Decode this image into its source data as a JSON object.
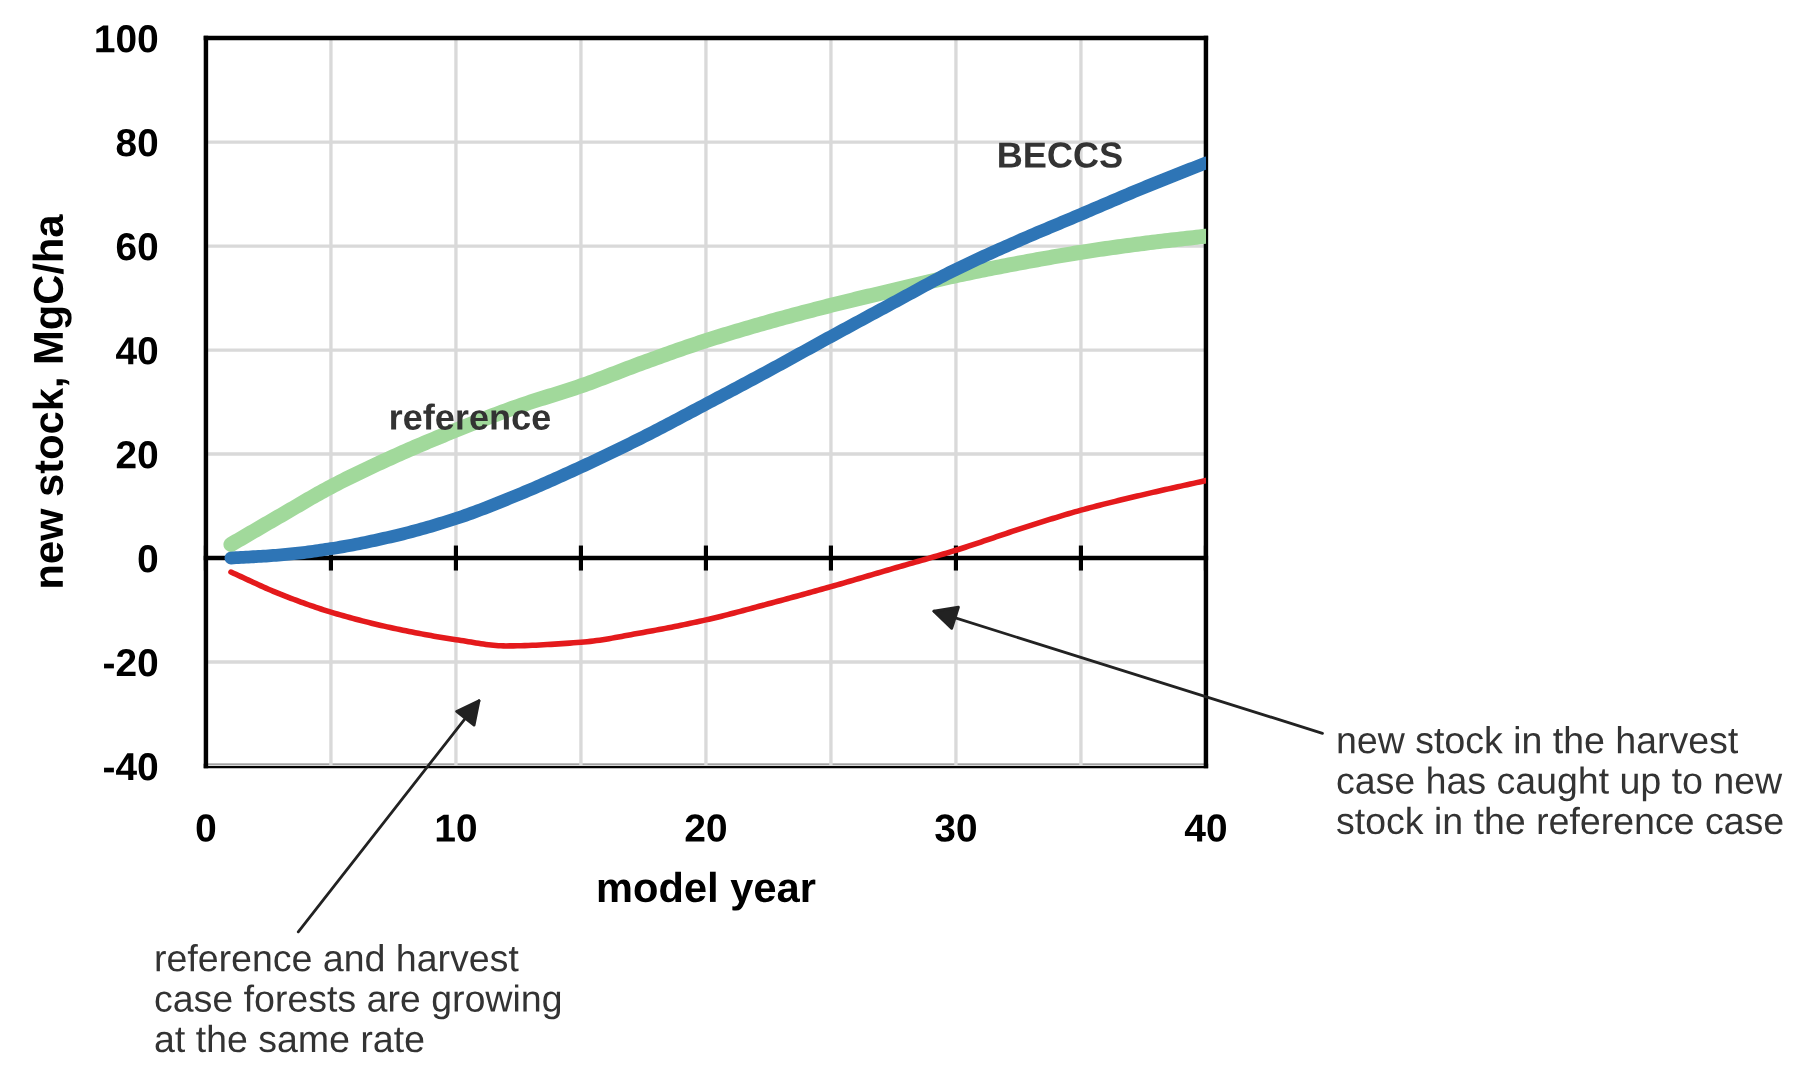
{
  "chart_data": {
    "type": "line",
    "xlabel": "model year",
    "ylabel": "new stock, MgC/ha",
    "xlim": [
      0,
      40
    ],
    "ylim": [
      -40,
      100
    ],
    "xticks": [
      0,
      {
        "value": 5,
        "label": null
      },
      10,
      {
        "value": 15,
        "label": null
      },
      20,
      {
        "value": 25,
        "label": null
      },
      30,
      {
        "value": 35,
        "label": null
      },
      40
    ],
    "yticks": [
      -40,
      -20,
      0,
      20,
      40,
      60,
      80,
      100
    ],
    "grid": true,
    "series": [
      {
        "name": "reference",
        "color": "#a1d99b",
        "x": [
          1,
          3,
          5,
          7.5,
          10,
          12.5,
          15,
          17.5,
          20,
          22.5,
          25,
          27.5,
          30,
          32.5,
          35,
          37.5,
          40
        ],
        "values": [
          2.6,
          8.2,
          13.7,
          19.5,
          24.6,
          29.2,
          33.1,
          37.6,
          41.8,
          45.4,
          48.6,
          51.5,
          54.3,
          56.7,
          58.8,
          60.5,
          61.9
        ]
      },
      {
        "name": "BECCS",
        "color": "#2e75b6",
        "x": [
          1,
          3,
          5,
          7.5,
          10,
          12.5,
          15,
          17.5,
          20,
          22.5,
          25,
          27.5,
          30,
          32.5,
          35,
          37.5,
          40
        ],
        "values": [
          0,
          0.6,
          1.8,
          4.2,
          7.6,
          12.2,
          17.5,
          23.3,
          29.6,
          36,
          42.6,
          49.1,
          55.5,
          61,
          66.1,
          71.2,
          76
        ]
      },
      {
        "color": "#e41a1c",
        "x": [
          1,
          3,
          5,
          7.5,
          10,
          12,
          15,
          17.5,
          20,
          22.5,
          25,
          27.5,
          30,
          32.5,
          35,
          37.5,
          40
        ],
        "values": [
          -2.7,
          -7,
          -10.4,
          -13.5,
          -15.7,
          -16.9,
          -16.2,
          -14.3,
          -11.9,
          -8.8,
          -5.5,
          -2,
          1.5,
          5.5,
          9.2,
          12.2,
          14.9
        ]
      }
    ],
    "annotations": [
      "reference and harvest\ncase forests are growing\nat the same rate",
      "new stock in the harvest\ncase has caught up to new\nstock in the reference case"
    ]
  }
}
